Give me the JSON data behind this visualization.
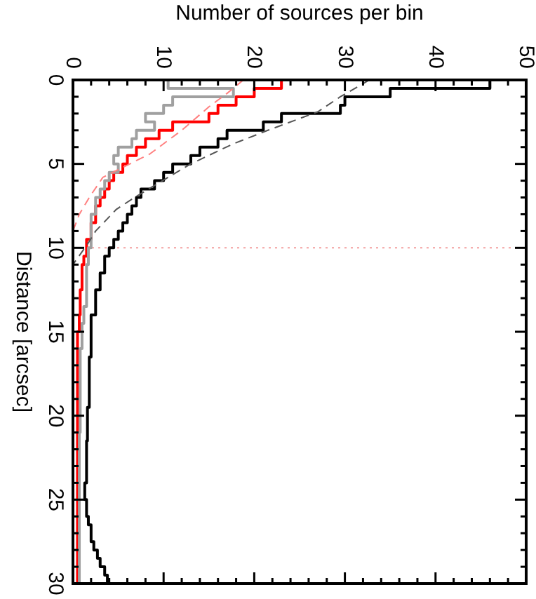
{
  "chart_data": {
    "type": "histogram",
    "orientation": "horizontal",
    "xlabel": "Number of sources per bin",
    "ylabel": "Distance [arcsec]",
    "bins": [
      0,
      0.5,
      1,
      1.5,
      2,
      2.5,
      3,
      3.5,
      4,
      4.5,
      5,
      5.5,
      6,
      6.5,
      7,
      7.5,
      8,
      8.5,
      9,
      9.5,
      10,
      10.5,
      11,
      11.5,
      12,
      12.5,
      13,
      13.5,
      14,
      14.5,
      15,
      15.5,
      16,
      16.5,
      17,
      17.5,
      18,
      18.5,
      19,
      19.5,
      20,
      20.5,
      21,
      21.5,
      22,
      22.5,
      23,
      23.5,
      24,
      24.5,
      25,
      25.5,
      26,
      26.5,
      27,
      27.5,
      28,
      28.5,
      29,
      29.5,
      30
    ],
    "series": [
      {
        "color": "#000000",
        "values": [
          46,
          35,
          30,
          29.5,
          23,
          21,
          17,
          16,
          14,
          13,
          11,
          10,
          9,
          7.5,
          7,
          6.5,
          6,
          5.5,
          5,
          4.5,
          4,
          3.5,
          3.5,
          3,
          3,
          2.5,
          2.5,
          2.5,
          2,
          2,
          2,
          2,
          2,
          1.8,
          1.8,
          1.8,
          1.8,
          1.8,
          1.8,
          1.6,
          1.6,
          1.6,
          1.6,
          1.5,
          1.5,
          1.5,
          1.5,
          1.5,
          1.3,
          1.3,
          1.5,
          1.5,
          1.7,
          2,
          2,
          2.3,
          2.7,
          3,
          3.5,
          3.8
        ]
      },
      {
        "color": "#ff0000",
        "values": [
          23,
          20,
          18,
          16,
          15,
          11,
          9.5,
          8,
          7,
          6,
          5.5,
          4.5,
          4,
          3.5,
          3,
          2.5,
          2.5,
          2,
          2,
          1.5,
          1.5,
          1.2,
          1,
          1,
          1,
          0.8,
          0.8,
          0.8,
          0.7,
          0.7,
          0.5,
          0.5,
          0.5,
          0.5,
          0.5,
          0.5,
          0.5,
          0.5,
          0.5,
          0.5,
          0.5,
          0.5,
          0.5,
          0.5,
          0.5,
          0.5,
          0.5,
          0.5,
          0.5,
          0.5,
          0.5,
          0.5,
          0.5,
          0.5,
          0.5,
          0.5,
          0.5,
          0.5,
          0.5,
          0.5
        ]
      },
      {
        "color": "#a0a0a0",
        "values": [
          10.5,
          17.7,
          11,
          10,
          8,
          9,
          7,
          6.5,
          5,
          4.5,
          5,
          4,
          3.5,
          3,
          2.5,
          2.5,
          2,
          2,
          2,
          2,
          1.7,
          1.7,
          1.5,
          1.5,
          1.5,
          1.5,
          1.5,
          1.2,
          1.2,
          1,
          1,
          1,
          0.8,
          0.8,
          0.8,
          0.8,
          0.8,
          0.8,
          0.8,
          0.8,
          0.8,
          0.8,
          0.7,
          0.7,
          0.7,
          0.7,
          0.7,
          0.7,
          0.7,
          0.7,
          0.7,
          0.7,
          0.7,
          0.7,
          0.7,
          0.7,
          0.7,
          0.7,
          0.7,
          0.7
        ]
      },
      {
        "type": "line",
        "line_style": "dashed",
        "color": "#555555",
        "x": [
          0,
          1,
          1.9,
          3,
          3.8,
          5,
          5.8,
          7,
          7.7,
          9,
          9.7,
          11
        ],
        "values": [
          32.7,
          29.5,
          27,
          21.5,
          17.7,
          13,
          10.5,
          6.8,
          4.8,
          2.5,
          1.7,
          0
        ]
      },
      {
        "type": "line",
        "line_style": "dashed",
        "color": "#ff8080",
        "x": [
          0,
          0.8,
          1.6,
          3,
          4.4,
          5.8,
          7,
          8,
          9
        ],
        "values": [
          18.8,
          17,
          15,
          12,
          8.5,
          3.3,
          1.8,
          0.7,
          0
        ]
      }
    ],
    "xlim": [
      0,
      50
    ],
    "xticks": [
      0,
      {
        "value": 2,
        "label": null
      },
      {
        "value": 4,
        "label": null
      },
      {
        "value": 6,
        "label": null
      },
      {
        "value": 8,
        "label": null
      },
      10,
      {
        "value": 12,
        "label": null
      },
      {
        "value": 14,
        "label": null
      },
      {
        "value": 16,
        "label": null
      },
      {
        "value": 18,
        "label": null
      },
      20,
      {
        "value": 22,
        "label": null
      },
      {
        "value": 24,
        "label": null
      },
      {
        "value": 26,
        "label": null
      },
      {
        "value": 28,
        "label": null
      },
      30,
      {
        "value": 32,
        "label": null
      },
      {
        "value": 34,
        "label": null
      },
      {
        "value": 36,
        "label": null
      },
      {
        "value": 38,
        "label": null
      },
      40,
      {
        "value": 42,
        "label": null
      },
      {
        "value": 44,
        "label": null
      },
      {
        "value": 46,
        "label": null
      },
      {
        "value": 48,
        "label": null
      },
      50
    ],
    "ylim": [
      30,
      0
    ],
    "yticks": [
      0,
      {
        "value": 1,
        "label": null
      },
      {
        "value": 2,
        "label": null
      },
      {
        "value": 3,
        "label": null
      },
      {
        "value": 4,
        "label": null
      },
      5,
      {
        "value": 6,
        "label": null
      },
      {
        "value": 7,
        "label": null
      },
      {
        "value": 8,
        "label": null
      },
      {
        "value": 9,
        "label": null
      },
      10,
      {
        "value": 11,
        "label": null
      },
      {
        "value": 12,
        "label": null
      },
      {
        "value": 13,
        "label": null
      },
      {
        "value": 14,
        "label": null
      },
      15,
      {
        "value": 16,
        "label": null
      },
      {
        "value": 17,
        "label": null
      },
      {
        "value": 18,
        "label": null
      },
      {
        "value": 19,
        "label": null
      },
      20,
      {
        "value": 21,
        "label": null
      },
      {
        "value": 22,
        "label": null
      },
      {
        "value": 23,
        "label": null
      },
      {
        "value": 24,
        "label": null
      },
      25,
      {
        "value": 26,
        "label": null
      },
      {
        "value": 27,
        "label": null
      },
      {
        "value": 28,
        "label": null
      },
      {
        "value": 29,
        "label": null
      },
      30
    ],
    "ref_lines": [
      {
        "axis": "y",
        "value": 10,
        "color": "#f4a0a0",
        "line_style": "dotted"
      }
    ]
  }
}
